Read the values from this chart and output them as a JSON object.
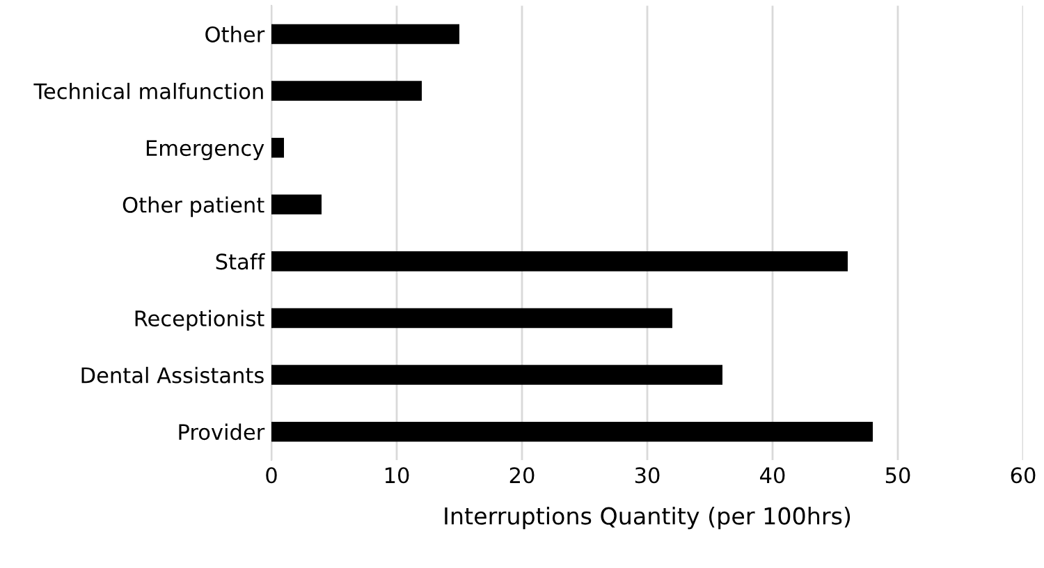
{
  "chart_data": {
    "type": "bar",
    "orientation": "horizontal",
    "xlabel": "Interruptions Quantity (per 100hrs)",
    "categories": [
      "Other",
      "Technical malfunction",
      "Emergency",
      "Other patient",
      "Staff",
      "Receptionist",
      "Dental Assistants",
      "Provider"
    ],
    "values": [
      15,
      12,
      1,
      4,
      46,
      32,
      36,
      48
    ],
    "color": "#000000",
    "xlim": [
      0,
      60
    ],
    "xticks": [
      0,
      10,
      20,
      30,
      40,
      50,
      60
    ],
    "grid": "x",
    "legend": false
  }
}
